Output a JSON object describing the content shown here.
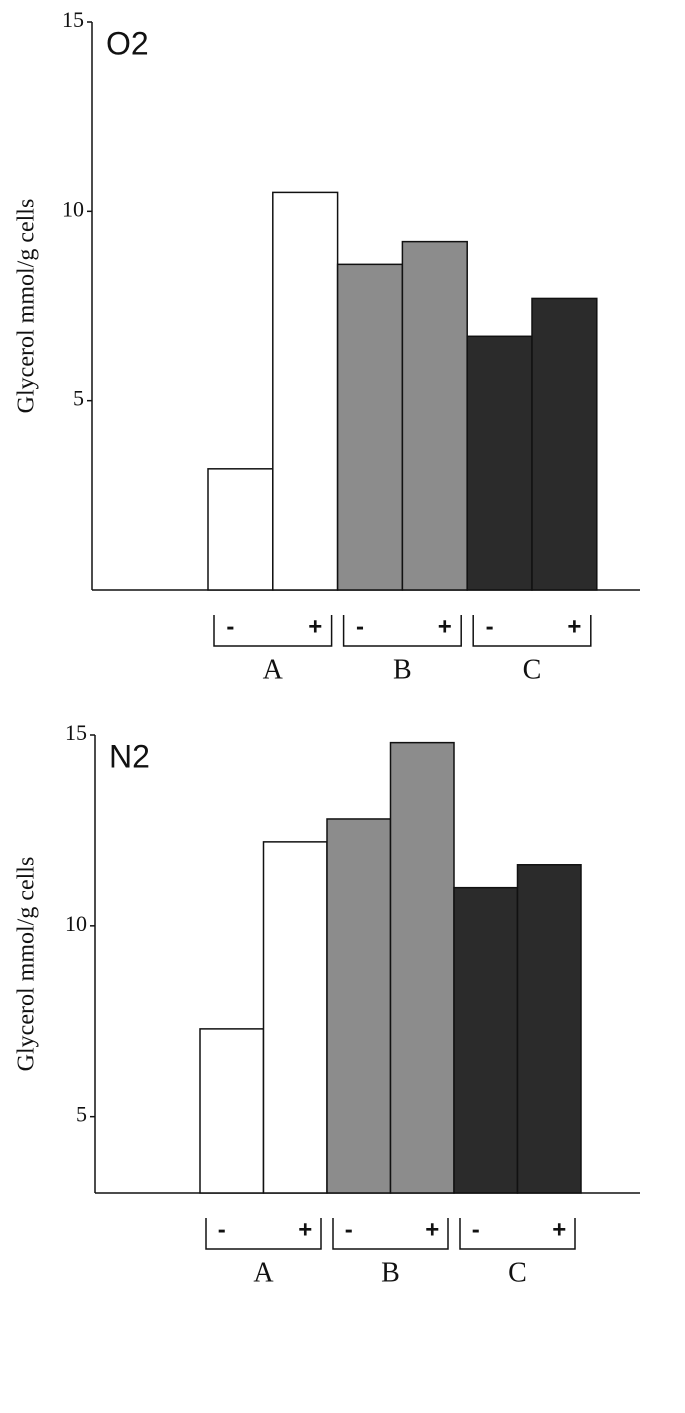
{
  "chart_data": [
    {
      "type": "bar",
      "panel_label": "O2",
      "y_label": "Glycerol mmol/g cells",
      "groups": [
        "A",
        "B",
        "C"
      ],
      "categories": [
        "-",
        "+",
        "-",
        "+",
        "-",
        "+"
      ],
      "values": [
        3.2,
        10.5,
        8.6,
        9.2,
        6.7,
        7.7
      ],
      "colors": [
        "#ffffff",
        "#ffffff",
        "#8c8c8c",
        "#8c8c8c",
        "#2b2b2b",
        "#2b2b2b"
      ],
      "ylim": [
        0,
        15
      ],
      "yticks": [
        5,
        10,
        15
      ]
    },
    {
      "type": "bar",
      "panel_label": "N2",
      "y_label": "Glycerol mmol/g cells",
      "groups": [
        "A",
        "B",
        "C"
      ],
      "categories": [
        "-",
        "+",
        "-",
        "+",
        "-",
        "+"
      ],
      "values": [
        7.3,
        12.2,
        12.8,
        14.8,
        11.0,
        11.6
      ],
      "colors": [
        "#ffffff",
        "#ffffff",
        "#8c8c8c",
        "#8c8c8c",
        "#2b2b2b",
        "#2b2b2b"
      ],
      "ylim": [
        3,
        15
      ],
      "yticks": [
        5,
        10,
        15
      ]
    }
  ]
}
